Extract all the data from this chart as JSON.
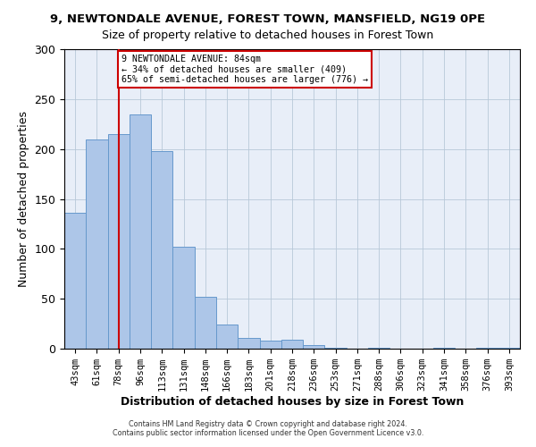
{
  "title": "9, NEWTONDALE AVENUE, FOREST TOWN, MANSFIELD, NG19 0PE",
  "subtitle": "Size of property relative to detached houses in Forest Town",
  "xlabel": "Distribution of detached houses by size in Forest Town",
  "ylabel": "Number of detached properties",
  "bar_labels": [
    "43sqm",
    "61sqm",
    "78sqm",
    "96sqm",
    "113sqm",
    "131sqm",
    "148sqm",
    "166sqm",
    "183sqm",
    "201sqm",
    "218sqm",
    "236sqm",
    "253sqm",
    "271sqm",
    "288sqm",
    "306sqm",
    "323sqm",
    "341sqm",
    "358sqm",
    "376sqm",
    "393sqm"
  ],
  "bar_values": [
    136,
    210,
    215,
    235,
    198,
    102,
    52,
    24,
    11,
    8,
    9,
    4,
    1,
    0,
    1,
    0,
    0,
    1,
    0,
    1,
    1
  ],
  "ylim": [
    0,
    300
  ],
  "yticks": [
    0,
    50,
    100,
    150,
    200,
    250,
    300
  ],
  "bar_color": "#adc6e8",
  "bar_edge_color": "#6699cc",
  "vline_x_index": 2,
  "vline_color": "#cc0000",
  "annotation_line1": "9 NEWTONDALE AVENUE: 84sqm",
  "annotation_line2": "← 34% of detached houses are smaller (409)",
  "annotation_line3": "65% of semi-detached houses are larger (776) →",
  "annotation_box_facecolor": "#ffffff",
  "annotation_box_edgecolor": "#cc0000",
  "footer1": "Contains HM Land Registry data © Crown copyright and database right 2024.",
  "footer2": "Contains public sector information licensed under the Open Government Licence v3.0.",
  "axes_facecolor": "#e8eef8",
  "fig_facecolor": "#ffffff"
}
